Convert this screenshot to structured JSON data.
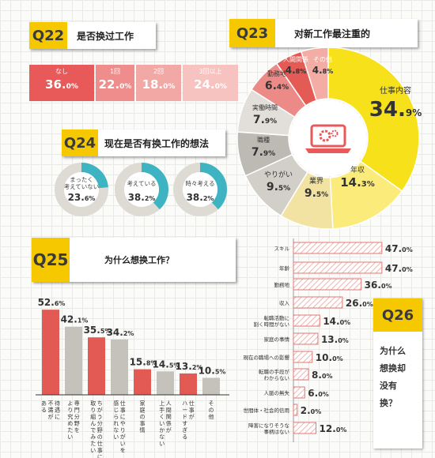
{
  "colors": {
    "q_tag": "#f5c800",
    "q22_cells": [
      "#e8595a",
      "#ee8d8b",
      "#f2a9a6",
      "#f6c3c0"
    ],
    "donut": [
      "#f7e11a",
      "#fbeb7a",
      "#f2e3a2",
      "#d1cfc8",
      "#bdbab4",
      "#e2dfda",
      "#ec8a87",
      "#e45b55",
      "#f3ada5"
    ],
    "donut_center_icon": "#e8595a",
    "q24_ring": "#3eb4c2",
    "q24_ring_track": "#dedbd5",
    "q25_bar_red": "#e35a55",
    "q25_bar_gray": "#c5c2bb",
    "q26_bar_fill": "#ffffff",
    "q26_bar_border": "#e07a76",
    "q26_bar_hatch": "#f1b3af"
  },
  "q22": {
    "tag": "Q22",
    "title": "是否换过工作",
    "cells": [
      {
        "label": "なし",
        "value": "36.",
        "unit": "0%"
      },
      {
        "label": "1回",
        "value": "22.",
        "unit": "0%"
      },
      {
        "label": "2回",
        "value": "18.",
        "unit": "0%"
      },
      {
        "label": "3回以上",
        "value": "24.",
        "unit": "0%"
      }
    ]
  },
  "q23": {
    "tag": "Q23",
    "title": "对新工作最注重的",
    "center_icon": "laptop-gear-icon"
  },
  "q24": {
    "tag": "Q24",
    "title": "现在是否有换工作的想法",
    "rings": [
      {
        "label_line1": "まったく",
        "label_line2": "考えていない",
        "value": "23.",
        "unit": "6%",
        "percent": 23.6
      },
      {
        "label_line1": "考えている",
        "label_line2": "",
        "value": "38.",
        "unit": "2%",
        "percent": 38.2
      },
      {
        "label_line1": "時々考える",
        "label_line2": "",
        "value": "38.",
        "unit": "2%",
        "percent": 38.2
      }
    ]
  },
  "q25": {
    "tag": "Q25",
    "title": "为什么想换工作？"
  },
  "q26": {
    "tag": "Q26",
    "title_lines": [
      "为什么",
      "想换却",
      "没有",
      "换？"
    ]
  },
  "chart_data": [
    {
      "type": "pie",
      "title": "对新工作最注重的",
      "categories": [
        "仕事内容",
        "年収",
        "業界",
        "やりがい",
        "職種",
        "実働時間",
        "勤務地",
        "人間関係",
        "その他"
      ],
      "values": [
        34.9,
        14.3,
        9.5,
        9.5,
        7.9,
        7.9,
        6.4,
        4.8,
        4.8
      ],
      "value_labels": [
        "34.9%",
        "14.3%",
        "9.5%",
        "9.5%",
        "7.9%",
        "7.9%",
        "6.4%",
        "4.8%",
        "4.8%"
      ],
      "label_display": [
        {
          "value": "34.",
          "unit": "9%"
        },
        {
          "value": "14.",
          "unit": "3%"
        },
        {
          "value": "9.",
          "unit": "5%"
        },
        {
          "value": "9.",
          "unit": "5%"
        },
        {
          "value": "7.",
          "unit": "9%"
        },
        {
          "value": "7.",
          "unit": "9%"
        },
        {
          "value": "6.",
          "unit": "4%"
        },
        {
          "value": "4.",
          "unit": "8%"
        },
        {
          "value": "4.",
          "unit": "8%"
        }
      ]
    },
    {
      "type": "bar",
      "orientation": "vertical",
      "title": "为什么想换工作？",
      "categories": [
        [
          "待遇に",
          "不満が",
          "ある"
        ],
        [
          "専門分野を",
          "より究めたい"
        ],
        [
          "ちがう分野の仕事に",
          "取り組んでみたい"
        ],
        [
          "仕事にやりがいを",
          "感じられない"
        ],
        [
          "家庭の事情"
        ],
        [
          "人間関係が",
          "上手くいかない"
        ],
        [
          "仕事が",
          "ハードすぎる"
        ],
        [
          "その他"
        ]
      ],
      "values": [
        52.6,
        42.1,
        35.5,
        34.2,
        15.8,
        14.5,
        13.2,
        10.5
      ],
      "value_labels": [
        {
          "value": "52.",
          "unit": "6%"
        },
        {
          "value": "42.",
          "unit": "1%"
        },
        {
          "value": "35.",
          "unit": "5%"
        },
        {
          "value": "34.",
          "unit": "2%"
        },
        {
          "value": "15.",
          "unit": "8%"
        },
        {
          "value": "14.",
          "unit": "5%"
        },
        {
          "value": "13.",
          "unit": "2%"
        },
        {
          "value": "10.",
          "unit": "5%"
        }
      ],
      "highlight": [
        true,
        false,
        true,
        false,
        true,
        false,
        true,
        false
      ]
    },
    {
      "type": "bar",
      "orientation": "horizontal",
      "title": "为什么想换却没有换？",
      "categories": [
        [
          "スキル"
        ],
        [
          "年齢"
        ],
        [
          "勤務地"
        ],
        [
          "収入"
        ],
        [
          "転職活動に",
          "割く時間がない"
        ],
        [
          "家庭の事情"
        ],
        [
          "現在の職場への影響"
        ],
        [
          "転職の手段が",
          "わからない"
        ],
        [
          "人脈の無失"
        ],
        [
          "世間体・社会的信用"
        ],
        [
          "障害になりそうな",
          "事柄はない"
        ]
      ],
      "values": [
        47.0,
        47.0,
        36.0,
        26.0,
        14.0,
        13.0,
        10.0,
        8.0,
        6.0,
        2.0,
        12.0
      ],
      "value_labels": [
        {
          "value": "47.",
          "unit": "0%"
        },
        {
          "value": "47.",
          "unit": "0%"
        },
        {
          "value": "36.",
          "unit": "0%"
        },
        {
          "value": "26.",
          "unit": "0%"
        },
        {
          "value": "14.",
          "unit": "0%"
        },
        {
          "value": "13.",
          "unit": "0%"
        },
        {
          "value": "10.",
          "unit": "0%"
        },
        {
          "value": "8.",
          "unit": "0%"
        },
        {
          "value": "6.",
          "unit": "0%"
        },
        {
          "value": "2.",
          "unit": "0%"
        },
        {
          "value": "12.",
          "unit": "0%"
        }
      ]
    }
  ]
}
